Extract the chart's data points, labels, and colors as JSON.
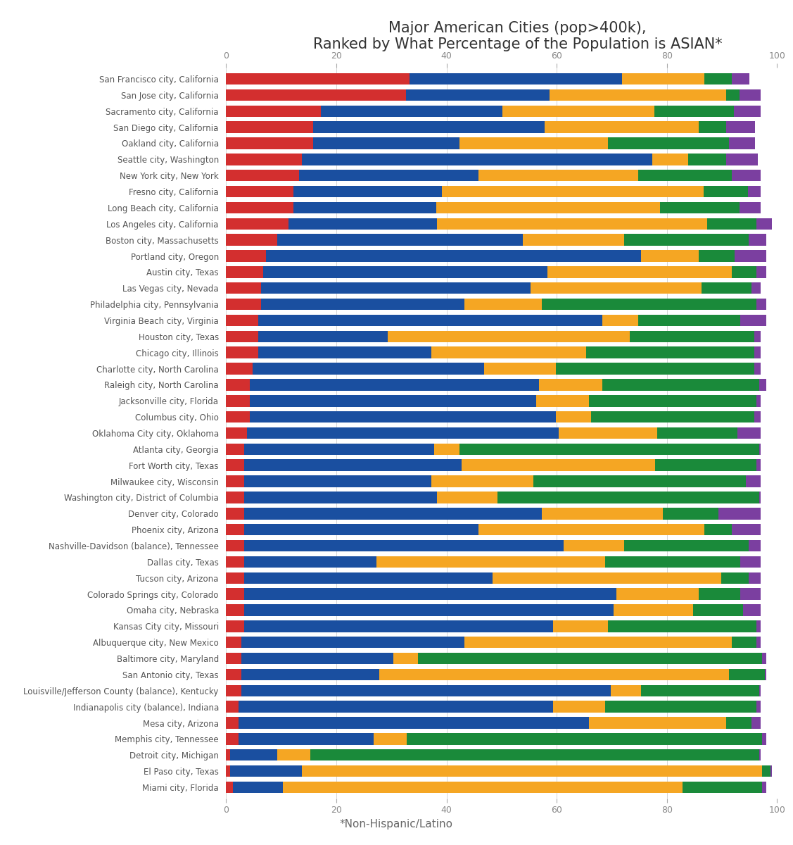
{
  "title_line1": "Major American Cities (pop>400k),",
  "title_line2": "Ranked by What Percentage of the Population is ASIAN*",
  "footnote": "*Non-Hispanic/Latino",
  "background_color": "#ffffff",
  "colors": [
    "#d32f2f",
    "#1a4fa0",
    "#f5a623",
    "#1a8a3a",
    "#7b3fa0"
  ],
  "cities": [
    "San Francisco city, California",
    "San Jose city, California",
    "Sacramento city, California",
    "San Diego city, California",
    "Oakland city, California",
    "Seattle city, Washington",
    "New York city, New York",
    "Fresno city, California",
    "Long Beach city, California",
    "Los Angeles city, California",
    "Boston city, Massachusetts",
    "Portland city, Oregon",
    "Austin city, Texas",
    "Las Vegas city, Nevada",
    "Philadelphia city, Pennsylvania",
    "Virginia Beach city, Virginia",
    "Houston city, Texas",
    "Chicago city, Illinois",
    "Charlotte city, North Carolina",
    "Raleigh city, North Carolina",
    "Jacksonville city, Florida",
    "Columbus city, Ohio",
    "Oklahoma City city, Oklahoma",
    "Atlanta city, Georgia",
    "Fort Worth city, Texas",
    "Milwaukee city, Wisconsin",
    "Washington city, District of Columbia",
    "Denver city, Colorado",
    "Phoenix city, Arizona",
    "Nashville-Davidson (balance), Tennessee",
    "Dallas city, Texas",
    "Tucson city, Arizona",
    "Colorado Springs city, Colorado",
    "Omaha city, Nebraska",
    "Kansas City city, Missouri",
    "Albuquerque city, New Mexico",
    "Baltimore city, Maryland",
    "San Antonio city, Texas",
    "Louisville/Jefferson County (balance), Kentucky",
    "Indianapolis city (balance), Indiana",
    "Mesa city, Arizona",
    "Memphis city, Tennessee",
    "Detroit city, Michigan",
    "El Paso city, Texas",
    "Miami city, Florida"
  ],
  "segments": [
    [
      33.3,
      38.5,
      15.0,
      5.0,
      3.2
    ],
    [
      32.7,
      26.0,
      32.0,
      2.5,
      3.8
    ],
    [
      17.2,
      33.0,
      27.5,
      14.5,
      4.8
    ],
    [
      15.8,
      42.0,
      28.0,
      5.0,
      5.2
    ],
    [
      15.8,
      26.5,
      27.0,
      22.0,
      4.7
    ],
    [
      13.8,
      63.5,
      6.5,
      7.0,
      5.7
    ],
    [
      13.3,
      32.5,
      29.0,
      17.0,
      5.2
    ],
    [
      12.2,
      27.0,
      47.5,
      8.0,
      2.3
    ],
    [
      12.2,
      26.0,
      40.5,
      14.5,
      3.8
    ],
    [
      11.3,
      27.0,
      49.0,
      9.0,
      2.7
    ],
    [
      9.3,
      44.5,
      18.5,
      22.5,
      3.2
    ],
    [
      7.3,
      68.0,
      10.5,
      6.5,
      5.7
    ],
    [
      6.8,
      51.5,
      33.5,
      4.5,
      1.7
    ],
    [
      6.3,
      49.0,
      31.0,
      9.0,
      1.7
    ],
    [
      6.3,
      37.0,
      14.0,
      39.0,
      1.7
    ],
    [
      5.8,
      62.5,
      6.5,
      18.5,
      4.7
    ],
    [
      5.8,
      23.5,
      44.0,
      22.5,
      1.2
    ],
    [
      5.8,
      31.5,
      28.0,
      30.5,
      1.2
    ],
    [
      4.8,
      42.0,
      13.0,
      36.0,
      1.2
    ],
    [
      4.3,
      52.5,
      11.5,
      28.5,
      1.2
    ],
    [
      4.3,
      52.0,
      9.5,
      30.5,
      0.7
    ],
    [
      4.3,
      55.5,
      6.5,
      29.5,
      1.2
    ],
    [
      3.8,
      56.5,
      18.0,
      14.5,
      4.2
    ],
    [
      3.3,
      34.5,
      4.5,
      54.5,
      0.2
    ],
    [
      3.3,
      39.5,
      35.0,
      18.5,
      0.7
    ],
    [
      3.3,
      34.0,
      18.5,
      38.5,
      2.7
    ],
    [
      3.3,
      35.0,
      11.0,
      47.5,
      0.2
    ],
    [
      3.3,
      54.0,
      22.0,
      10.0,
      7.7
    ],
    [
      3.3,
      42.5,
      41.0,
      5.0,
      5.2
    ],
    [
      3.3,
      58.0,
      11.0,
      22.5,
      2.2
    ],
    [
      3.3,
      24.0,
      41.5,
      24.5,
      3.7
    ],
    [
      3.3,
      45.0,
      41.5,
      5.0,
      2.2
    ],
    [
      3.3,
      67.5,
      15.0,
      7.5,
      3.7
    ],
    [
      3.3,
      67.0,
      14.5,
      9.0,
      3.2
    ],
    [
      3.3,
      56.0,
      10.0,
      27.0,
      0.7
    ],
    [
      2.8,
      40.5,
      48.5,
      4.5,
      0.7
    ],
    [
      2.8,
      27.5,
      4.5,
      62.5,
      0.7
    ],
    [
      2.8,
      25.0,
      63.5,
      6.5,
      0.2
    ],
    [
      2.8,
      67.0,
      5.5,
      21.5,
      0.2
    ],
    [
      2.3,
      57.0,
      9.5,
      27.5,
      0.7
    ],
    [
      2.3,
      63.5,
      25.0,
      4.5,
      1.7
    ],
    [
      2.3,
      24.5,
      6.0,
      64.5,
      0.7
    ],
    [
      0.8,
      8.5,
      6.0,
      81.5,
      0.2
    ],
    [
      0.8,
      13.0,
      83.5,
      1.5,
      0.2
    ],
    [
      1.3,
      9.0,
      72.5,
      14.5,
      0.7
    ]
  ]
}
